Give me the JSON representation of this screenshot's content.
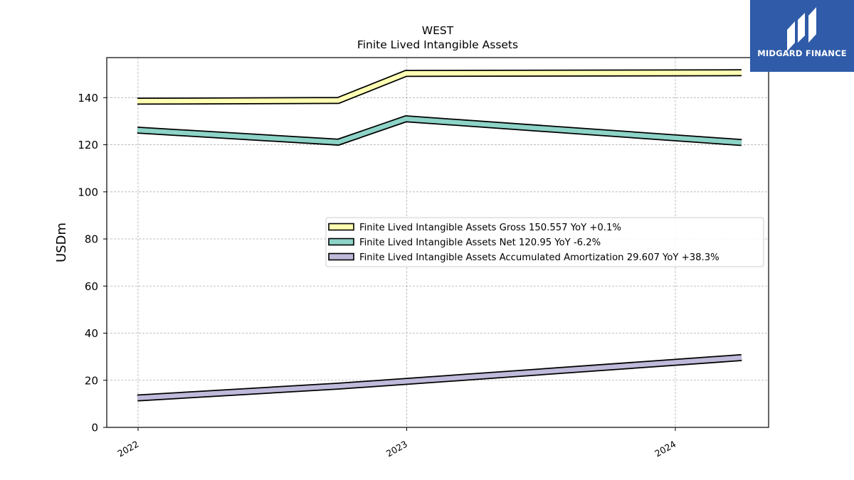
{
  "brand": {
    "name": "MIDGARD FINANCE",
    "bg_color": "#2f5ba8"
  },
  "chart_data": {
    "type": "line",
    "title": "WEST",
    "subtitle": "Finite Lived Intangible Assets",
    "xlabel": "",
    "ylabel": "USDm",
    "ylim": [
      0,
      157
    ],
    "yticks": [
      0,
      20,
      40,
      60,
      80,
      100,
      120,
      140
    ],
    "xticks": [
      "2022",
      "2023",
      "2024"
    ],
    "grid": true,
    "legend_position": "center-right",
    "x": [
      "2021-12-31",
      "2022-09-30",
      "2022-12-31",
      "2024-03-31"
    ],
    "series": [
      {
        "name": "Finite Lived Intangible Assets Gross",
        "legend": "Finite Lived Intangible Assets Gross  150.557 YoY +0.1%",
        "color": "#ffffb3",
        "values": [
          138.5,
          138.8,
          150.3,
          150.557
        ]
      },
      {
        "name": "Finite Lived Intangible Assets Net",
        "legend": "Finite Lived Intangible Assets Net  120.95 YoY -6.2%",
        "color": "#8dd3c7",
        "values": [
          126.2,
          121.1,
          131.0,
          120.95
        ]
      },
      {
        "name": "Finite Lived Intangible Assets Accumulated Amortization",
        "legend": "Finite Lived Intangible Assets Accumulated Amortization  29.607 YoY +38.3%",
        "color": "#bebada",
        "values": [
          12.5,
          17.5,
          19.5,
          29.607
        ]
      }
    ]
  }
}
